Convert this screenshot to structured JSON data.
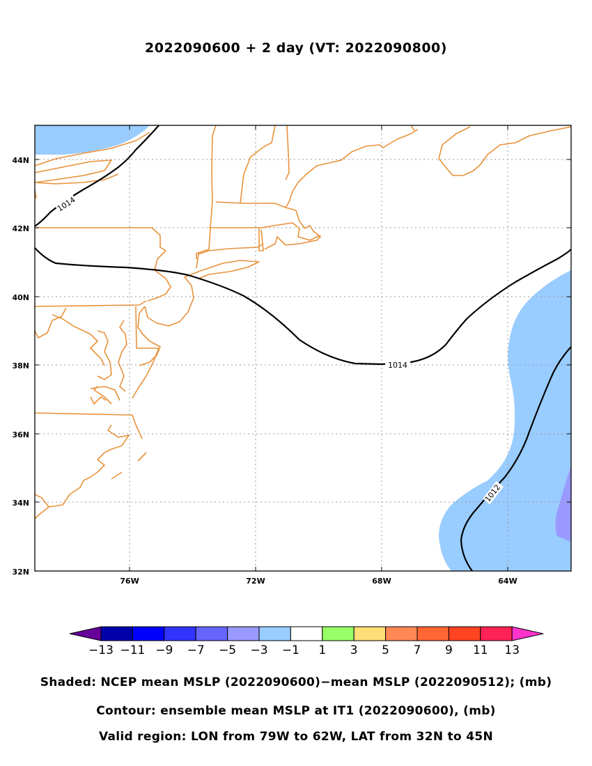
{
  "title": "2022090600 + 2 day (VT: 2022090800)",
  "map": {
    "lon_range": [
      -79,
      -62
    ],
    "lat_range": [
      32,
      45
    ],
    "x_ticks": [
      "76W",
      "72W",
      "68W",
      "64W"
    ],
    "y_ticks": [
      "44N",
      "42N",
      "40N",
      "38N",
      "36N",
      "34N",
      "32N"
    ],
    "contour_labels": [
      "1014",
      "1014",
      "1012"
    ],
    "colors": {
      "coastline": "#e8913a",
      "contour": "#000000",
      "shade_minus1_minus3": "#99ccff",
      "shade_minus3_minus5": "#9999ff",
      "grid": "#999999"
    }
  },
  "colorbar": {
    "levels": [
      "−13",
      "−11",
      "−9",
      "−7",
      "−5",
      "−3",
      "−1",
      "1",
      "3",
      "5",
      "7",
      "9",
      "11",
      "13"
    ],
    "colors": [
      "#660099",
      "#0000aa",
      "#0000ff",
      "#3333ff",
      "#6666ff",
      "#9999ff",
      "#99ccff",
      "#ffffff",
      "#99ff66",
      "#ffdd77",
      "#ff8855",
      "#ff6633",
      "#ff4422",
      "#ff2255",
      "#ff33cc"
    ]
  },
  "captions": {
    "shaded": "Shaded: NCEP mean MSLP (2022090600)−mean MSLP (2022090512); (mb)",
    "contour": "Contour: ensemble mean MSLP at IT1 (2022090600), (mb)",
    "region": "Valid region: LON from 79W to 62W, LAT from 32N to 45N"
  }
}
